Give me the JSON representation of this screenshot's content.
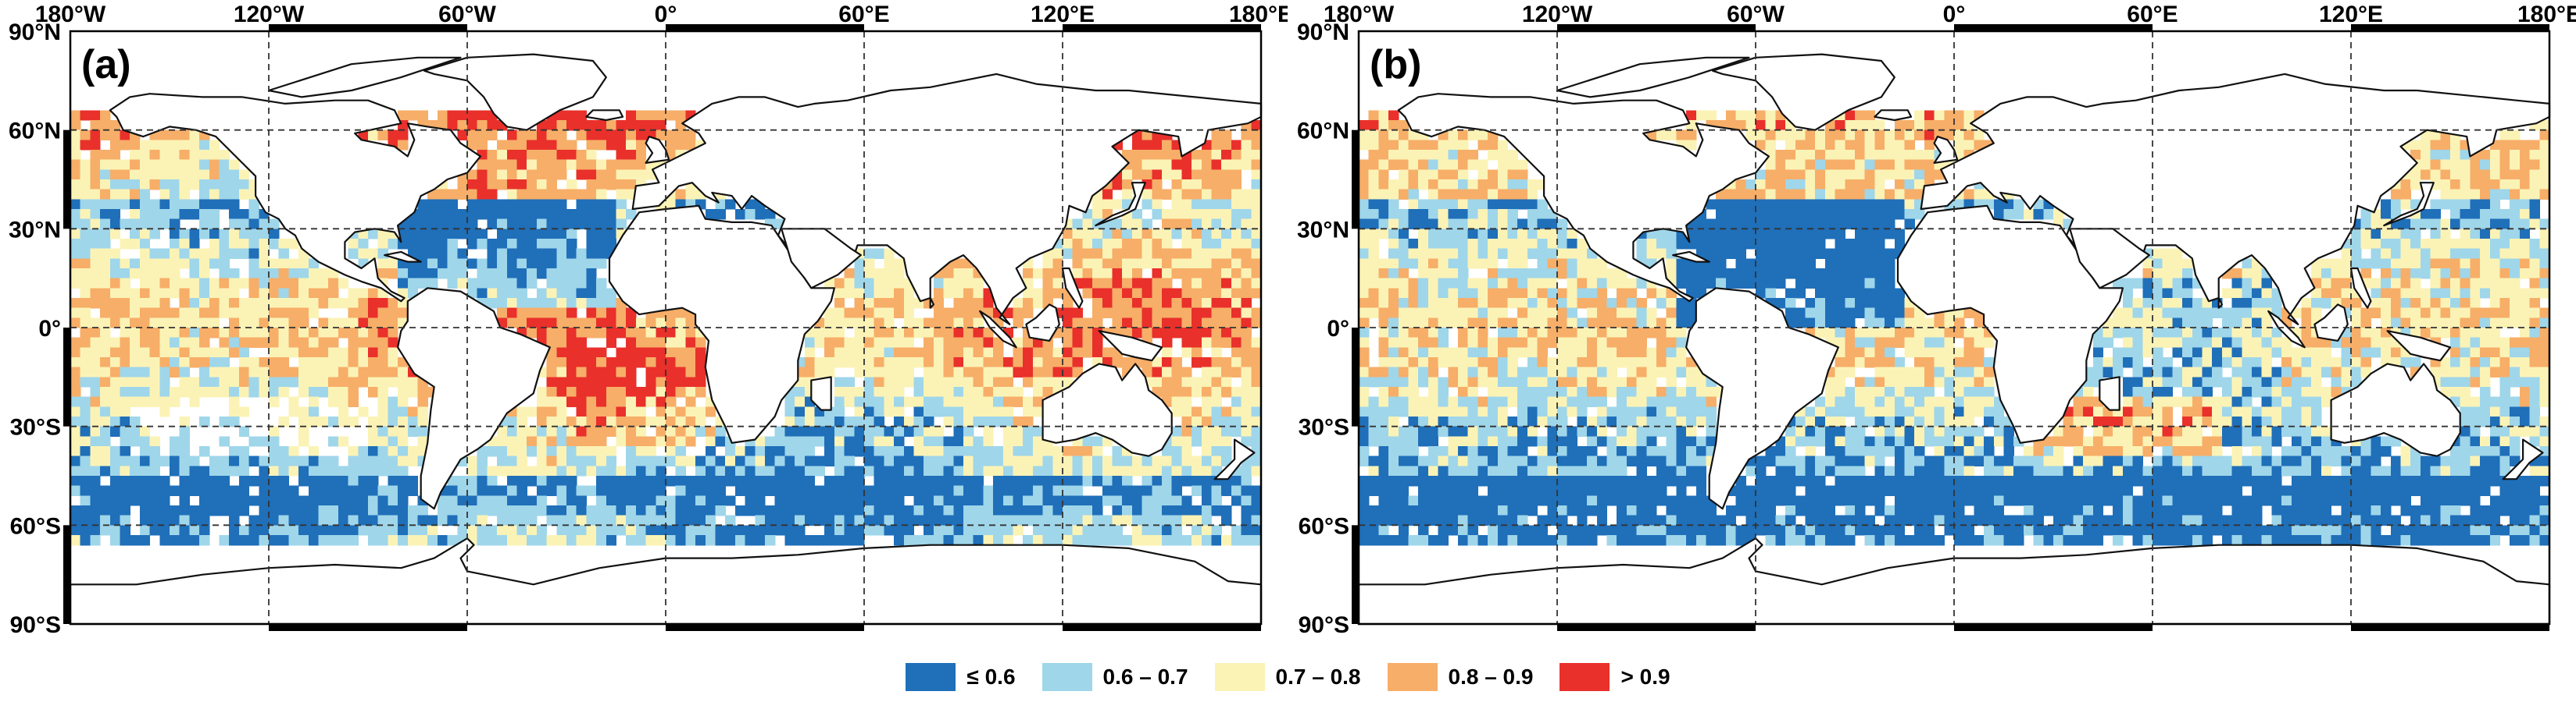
{
  "figure": {
    "panels": [
      {
        "id": "a",
        "label": "(a)"
      },
      {
        "id": "b",
        "label": "(b)"
      }
    ],
    "axes": {
      "lon_ticks": [
        "180°W",
        "120°W",
        "60°W",
        "0°",
        "60°E",
        "120°E",
        "180°E"
      ],
      "lat_ticks": [
        "90°N",
        "60°N",
        "30°N",
        "0°",
        "30°S",
        "60°S",
        "90°S"
      ]
    },
    "legend": [
      {
        "label": "≤ 0.6",
        "color": "#1f6fb9"
      },
      {
        "label": "0.6 – 0.7",
        "color": "#9fd6ea"
      },
      {
        "label": "0.7 – 0.8",
        "color": "#fbf3b6"
      },
      {
        "label": "0.8 – 0.9",
        "color": "#f7ae68"
      },
      {
        "label": "> 0.9",
        "color": "#e9302b"
      }
    ],
    "colors": {
      "land": "#ffffff",
      "coast": "#111111",
      "grid": "#333333",
      "very_low": "#1f6fb9",
      "low": "#9fd6ea",
      "mid": "#fbf3b6",
      "high": "#f7ae68",
      "very_high": "#e9302b"
    }
  }
}
